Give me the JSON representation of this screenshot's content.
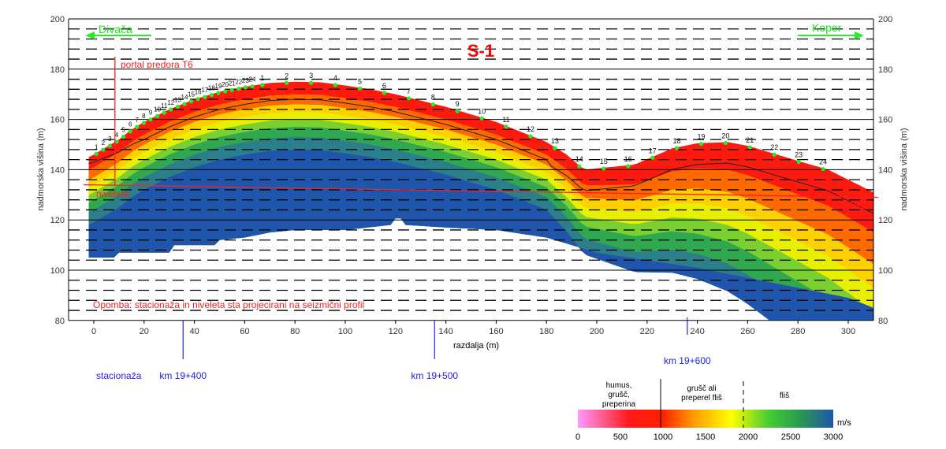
{
  "chart_data": {
    "type": "heatmap",
    "title": "S-1",
    "xlabel": "razdalja (m)",
    "ylabel": "nadmorska višina (m)",
    "xlim": [
      -10,
      310
    ],
    "ylim": [
      80,
      200
    ],
    "xticks": [
      0,
      20,
      40,
      60,
      80,
      100,
      120,
      140,
      160,
      180,
      200,
      220,
      240,
      260,
      280,
      300
    ],
    "yticks": [
      80,
      100,
      120,
      140,
      160,
      180,
      200
    ],
    "grid": "solid every 20 m, dashed every 4 m",
    "surface": [
      [
        -2,
        145
      ],
      [
        0,
        146
      ],
      [
        5,
        149
      ],
      [
        10,
        152
      ],
      [
        15,
        156
      ],
      [
        20,
        159
      ],
      [
        30,
        164
      ],
      [
        40,
        168
      ],
      [
        50,
        171
      ],
      [
        60,
        173
      ],
      [
        70,
        174.5
      ],
      [
        80,
        175
      ],
      [
        90,
        174.8
      ],
      [
        100,
        173.5
      ],
      [
        110,
        172
      ],
      [
        120,
        170
      ],
      [
        130,
        167.5
      ],
      [
        140,
        165
      ],
      [
        150,
        162
      ],
      [
        160,
        159
      ],
      [
        170,
        155
      ],
      [
        180,
        151
      ],
      [
        188,
        146
      ],
      [
        195,
        140
      ],
      [
        205,
        141
      ],
      [
        215,
        142
      ],
      [
        222,
        145
      ],
      [
        230,
        148.5
      ],
      [
        240,
        150.5
      ],
      [
        252,
        151
      ],
      [
        260,
        149.5
      ],
      [
        270,
        146.5
      ],
      [
        280,
        143.5
      ],
      [
        292,
        140
      ],
      [
        310,
        131
      ]
    ],
    "bottom": [
      [
        -2,
        105
      ],
      [
        8,
        105
      ],
      [
        10,
        107
      ],
      [
        30,
        107
      ],
      [
        32,
        110
      ],
      [
        48,
        110
      ],
      [
        50,
        112
      ],
      [
        60,
        113
      ],
      [
        70,
        115
      ],
      [
        80,
        116
      ],
      [
        100,
        116
      ],
      [
        118,
        118
      ],
      [
        121,
        122
      ],
      [
        124,
        118
      ],
      [
        140,
        117
      ],
      [
        160,
        116
      ],
      [
        180,
        113
      ],
      [
        190,
        110
      ],
      [
        200,
        107
      ],
      [
        220,
        104
      ],
      [
        240,
        101
      ],
      [
        260,
        97
      ],
      [
        280,
        93
      ],
      [
        300,
        89
      ],
      [
        310,
        85
      ]
    ],
    "geophones_spread1": {
      "labels": [
        "1",
        "2",
        "3",
        "4",
        "5",
        "6",
        "7",
        "8",
        "9",
        "10",
        "11",
        "12",
        "13",
        "14",
        "15",
        "16",
        "17",
        "18",
        "19",
        "20",
        "21",
        "22",
        "23",
        "24"
      ],
      "x_start": 1,
      "x_end": 63
    },
    "geophones_spread2": {
      "labels": [
        "1",
        "2",
        "3",
        "4",
        "5",
        "6",
        "7",
        "8",
        "9",
        "10",
        "11",
        "12",
        "13",
        "14",
        "15",
        "16",
        "17",
        "18",
        "19",
        "20",
        "21",
        "22",
        "23",
        "24"
      ],
      "x_start": 67,
      "x_end": 290
    },
    "annotations": {
      "direction_left": "Divača",
      "direction_right": "Koper",
      "portal": "portal predora T6",
      "portal_x": 8.4,
      "niveleta_left": "niveleta",
      "niveleta_right": "niveleta",
      "niveleta_line": [
        [
          -4,
          134
        ],
        [
          312,
          129
        ]
      ],
      "note": "Opomba: stacionaža in niveleta sta projecirani na seizmični profil",
      "station_label": "stacionaža",
      "stations": [
        {
          "label": "km 19+400",
          "x": 35.5
        },
        {
          "label": "km 19+500",
          "x": 135.5
        },
        {
          "label": "km 19+600",
          "x": 236
        }
      ]
    },
    "legend": {
      "unit": "m/s",
      "ticks": [
        "0",
        "500",
        "1000",
        "1500",
        "2000",
        "2500",
        "3000"
      ],
      "range": [
        0,
        3000
      ],
      "classes": [
        {
          "label": "humus,\ngrušč,\npreperina"
        },
        {
          "label": "grušč ali\npreperel fliš"
        },
        {
          "label": "fliš"
        }
      ],
      "colors": [
        "#ff99ff",
        "#ff0000",
        "#ff9900",
        "#ffff00",
        "#66cc33",
        "#33aa44",
        "#1f55aa"
      ]
    }
  }
}
